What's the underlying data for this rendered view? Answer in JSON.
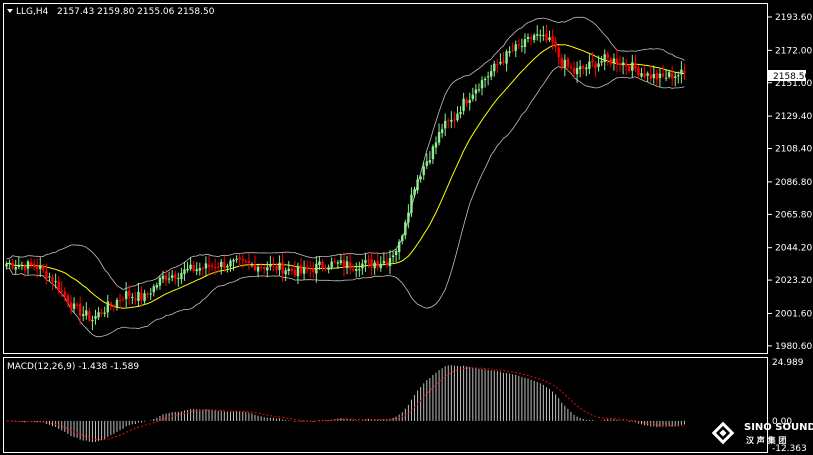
{
  "header": {
    "symbol_tf": "LLG,H4",
    "ohlc": "2157.43 2159.80 2155.06 2158.50"
  },
  "macd_header": {
    "label": "MACD(12,26,9) -1.438 -1.589"
  },
  "logo": {
    "brand_en": "SINO SOUND",
    "brand_cn": "汉 声 集 团"
  },
  "colors": {
    "background": "#000000",
    "up_candle": "#90ee90",
    "down_candle": "#ff0000",
    "ma_line": "#ffff00",
    "band_line": "#c0c0c0",
    "macd_hist": "#c0c0c0",
    "macd_signal": "#ff0000",
    "current_price_box": "#ffffff"
  },
  "chart_data": [
    {
      "type": "candlestick",
      "symbol": "LLG",
      "timeframe": "H4",
      "ylim": [
        1976,
        2202
      ],
      "y_ticks": [
        "2193.60",
        "2172.00",
        "2151.00",
        "2129.40",
        "2108.40",
        "2086.80",
        "2065.80",
        "2044.20",
        "2023.20",
        "2001.60",
        "1980.60"
      ],
      "y_tick_values": [
        2193.6,
        2172.0,
        2151.0,
        2129.4,
        2108.4,
        2086.8,
        2065.8,
        2044.2,
        2023.2,
        2001.6,
        1980.6
      ],
      "current_price": "2158.50",
      "current_price_value": 2158.5,
      "indicators": [
        "Bollinger Bands",
        "Moving Average"
      ],
      "anchors": [
        [
          0,
          2034
        ],
        [
          10,
          2032
        ],
        [
          15,
          2024
        ],
        [
          22,
          2005
        ],
        [
          28,
          1998
        ],
        [
          33,
          2006
        ],
        [
          39,
          2014
        ],
        [
          45,
          2012
        ],
        [
          51,
          2025
        ],
        [
          60,
          2030
        ],
        [
          72,
          2034
        ],
        [
          82,
          2033
        ],
        [
          90,
          2031
        ],
        [
          96,
          2028
        ],
        [
          104,
          2034
        ],
        [
          112,
          2033
        ],
        [
          118,
          2034
        ],
        [
          124,
          2036
        ],
        [
          128,
          2046
        ],
        [
          130,
          2063
        ],
        [
          133,
          2085
        ],
        [
          136,
          2097
        ],
        [
          139,
          2108
        ],
        [
          142,
          2122
        ],
        [
          145,
          2126
        ],
        [
          149,
          2138
        ],
        [
          153,
          2148
        ],
        [
          157,
          2156
        ],
        [
          161,
          2165
        ],
        [
          165,
          2172
        ],
        [
          169,
          2176
        ],
        [
          172,
          2182
        ],
        [
          175,
          2179
        ],
        [
          178,
          2176
        ],
        [
          181,
          2164
        ],
        [
          185,
          2158
        ],
        [
          190,
          2162
        ],
        [
          195,
          2166
        ],
        [
          200,
          2165
        ],
        [
          205,
          2160
        ],
        [
          209,
          2156
        ],
        [
          213,
          2154
        ],
        [
          217,
          2156
        ],
        [
          221,
          2157
        ]
      ]
    },
    {
      "type": "bar",
      "name": "MACD(12,26,9)",
      "main_value": -1.438,
      "signal_value": -1.589,
      "ylim": [
        -12.363,
        24.989
      ],
      "y_ticks": [
        "24.989",
        "0.00",
        "-12.363"
      ],
      "y_tick_values": [
        24.989,
        0.0,
        -12.363
      ]
    }
  ]
}
